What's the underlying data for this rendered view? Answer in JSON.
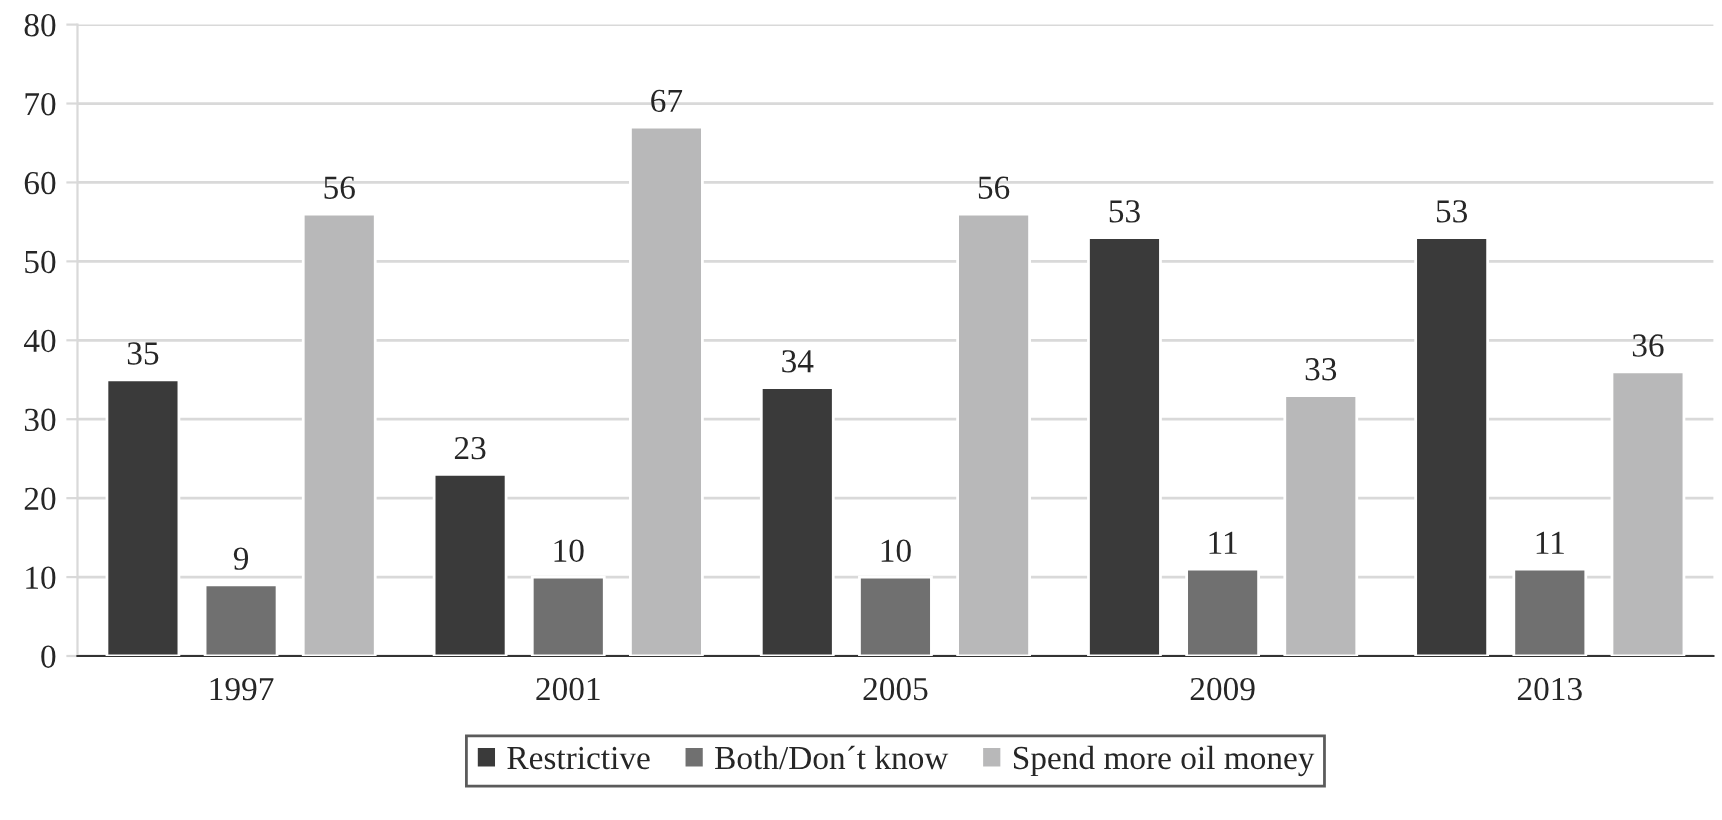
{
  "chart_data": {
    "type": "bar",
    "categories": [
      "1997",
      "2001",
      "2005",
      "2009",
      "2013"
    ],
    "series": [
      {
        "name": "Restrictive",
        "color": "#3a3a3a",
        "values": [
          35,
          23,
          34,
          53,
          53
        ]
      },
      {
        "name": "Both/Don´t know",
        "color": "#707070",
        "values": [
          9,
          10,
          10,
          11,
          11
        ]
      },
      {
        "name": "Spend more oil money",
        "color": "#b8b8b9",
        "values": [
          56,
          67,
          56,
          33,
          36
        ]
      }
    ],
    "ylim": [
      0,
      80
    ],
    "yticks": [
      0,
      10,
      20,
      30,
      40,
      50,
      60,
      70,
      80
    ],
    "grid": "y",
    "legend": "bottom",
    "data_labels": true
  }
}
